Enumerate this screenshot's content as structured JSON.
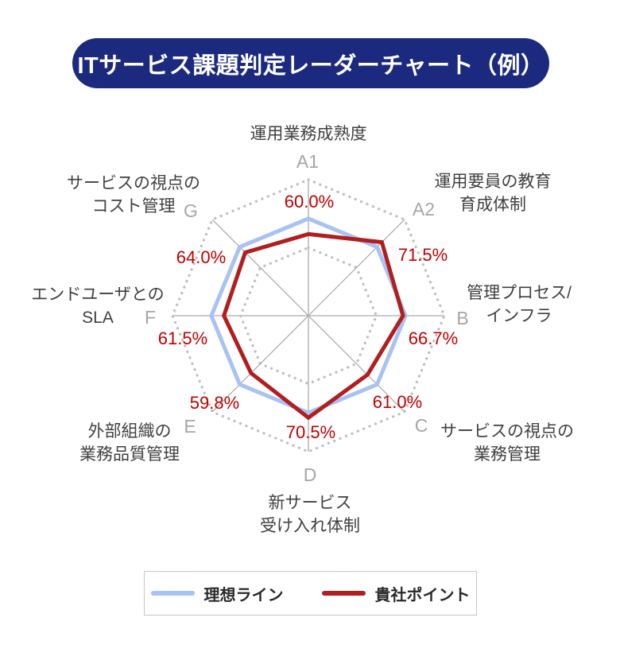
{
  "title": "ITサービス課題判定レーダーチャート（例）",
  "legend": {
    "items": [
      {
        "label": "理想ライン",
        "color": "#a8c2f4"
      },
      {
        "label": "貴社ポイント",
        "color": "#b01e1e"
      }
    ]
  },
  "colors": {
    "background": "#ffffff",
    "banner_bg": "#1b2a7e",
    "banner_text": "#ffffff",
    "ideal_line": "#a8c2f4",
    "company_line": "#b01e1e",
    "value_label": "#c00000",
    "grid_dots": "#bfbfbf",
    "spoke_cardinal": "#c2c2c2",
    "spoke_diagonal": "#9a9a9a",
    "axis_letters": "#a6a6a6",
    "category_text": "#404040",
    "legend_border": "#c6c6c6"
  },
  "chart_data": {
    "type": "radar",
    "title": "ITサービス課題判定レーダーチャート（例）",
    "axis_letters": [
      "A1",
      "A2",
      "B",
      "C",
      "D",
      "E",
      "F",
      "G"
    ],
    "categories": [
      "運用業務成熟度",
      "運用要員の教育 育成体制",
      "管理プロセス/ インフラ",
      "サービスの視点の 業務管理",
      "新サービス 受け入れ体制",
      "外部組織の 業務品質管理",
      "エンドユーザとの SLA",
      "サービスの視点の コスト管理"
    ],
    "category_lines": [
      [
        "運用業務成熟度"
      ],
      [
        "運用要員の教育",
        "育成体制"
      ],
      [
        "管理プロセス/",
        "インフラ"
      ],
      [
        "サービスの視点の",
        "業務管理"
      ],
      [
        "新サービス",
        "受け入れ体制"
      ],
      [
        "外部組織の",
        "業務品質管理"
      ],
      [
        "エンドユーザとの",
        "SLA"
      ],
      [
        "サービスの視点の",
        "コスト管理"
      ]
    ],
    "series": [
      {
        "name": "理想ライン",
        "color": "#a8c2f4",
        "values": [
          68,
          68,
          68,
          68,
          68,
          68,
          68,
          68
        ],
        "values_estimated": true
      },
      {
        "name": "貴社ポイント",
        "color": "#b01e1e",
        "values": [
          60.0,
          71.5,
          66.7,
          61.0,
          70.5,
          59.8,
          61.5,
          64.0
        ],
        "value_labels": [
          "60.0%",
          "71.5%",
          "66.7%",
          "61.0%",
          "70.5%",
          "59.8%",
          "61.5%",
          "64.0%"
        ]
      }
    ],
    "grid": {
      "rings": 2,
      "ring_style": "dotted",
      "inner_ring_fraction": 0.5,
      "spokes": true
    },
    "scale_estimated": {
      "center_value": 18,
      "outer_ring_value": 88
    },
    "legend_position": "bottom"
  }
}
